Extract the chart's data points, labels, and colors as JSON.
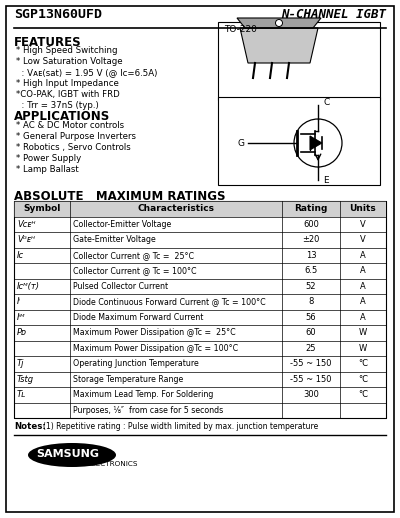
{
  "title_left": "SGP13N60UFD",
  "title_right": "N-CHANNEL IGBT",
  "package": "TO-220",
  "features_title": "FEATURES",
  "applications_title": "APPLICATIONS",
  "table_title": "ABSOLUTE   MAXIMUM RATINGS",
  "table_headers": [
    "Symbol",
    "Characteristics",
    "Rating",
    "Units"
  ],
  "notes_bold": "Notes:",
  "notes_rest": "(1) Repetitive rating : Pulse width limited by max. junction temperature",
  "bg_color": "#ffffff",
  "border_color": "#000000",
  "text_color": "#000000"
}
